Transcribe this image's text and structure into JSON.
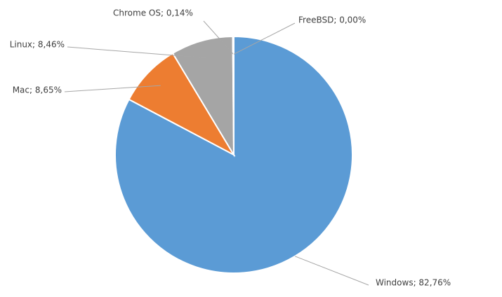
{
  "chart_data": {
    "type": "pie",
    "values": [
      82.76,
      8.65,
      8.46,
      0.14,
      0.0
    ],
    "value_labels": [
      "Windows; 82,76%",
      "Mac; 8,65%",
      "Linux; 8,46%",
      "Chrome OS; 0,14%",
      "FreeBSD; 0,00%"
    ],
    "colors": [
      "#5b9bd5",
      "#ed7d31",
      "#a5a5a5",
      "#ffc000",
      "#4472c4"
    ]
  }
}
